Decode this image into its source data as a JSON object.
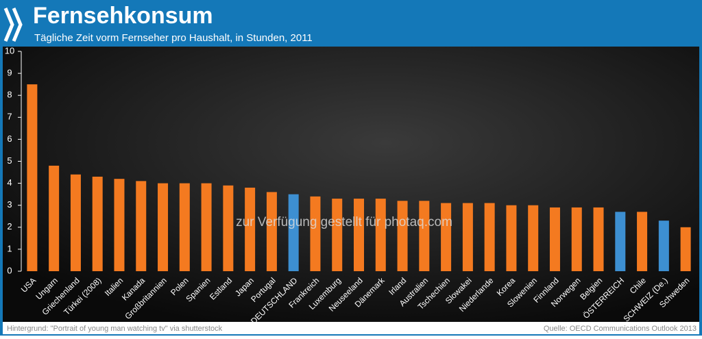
{
  "chart_data": {
    "type": "bar",
    "title": "Fernsehkonsum",
    "subtitle": "Tägliche Zeit vorm Fernseher pro Haushalt, in Stunden, 2011",
    "categories": [
      "USA",
      "Ungarn",
      "Griechenland",
      "Türkei (2008)",
      "Italien",
      "Kanada",
      "Großbritannien",
      "Polen",
      "Spanien",
      "Estland",
      "Japan",
      "Portugal",
      "DEUTSCHLAND",
      "Frankreich",
      "Luxemburg",
      "Neuseeland",
      "Dänemark",
      "Irland",
      "Australien",
      "Tschechien",
      "Slowakei",
      "Niederlande",
      "Korea",
      "Slowenien",
      "Finnland",
      "Norwegen",
      "Belgien",
      "ÖSTERREICH",
      "Chile",
      "SCHWEIZ (De.)",
      "Schweden"
    ],
    "values": [
      8.5,
      4.8,
      4.4,
      4.3,
      4.2,
      4.1,
      4.0,
      4.0,
      4.0,
      3.9,
      3.8,
      3.6,
      3.5,
      3.4,
      3.3,
      3.3,
      3.3,
      3.2,
      3.2,
      3.1,
      3.1,
      3.1,
      3.0,
      3.0,
      2.9,
      2.9,
      2.9,
      2.7,
      2.7,
      2.3,
      2.0
    ],
    "colors": [
      "#f47a20",
      "#f47a20",
      "#f47a20",
      "#f47a20",
      "#f47a20",
      "#f47a20",
      "#f47a20",
      "#f47a20",
      "#f47a20",
      "#f47a20",
      "#f47a20",
      "#f47a20",
      "#3d8fd1",
      "#f47a20",
      "#f47a20",
      "#f47a20",
      "#f47a20",
      "#f47a20",
      "#f47a20",
      "#f47a20",
      "#f47a20",
      "#f47a20",
      "#f47a20",
      "#f47a20",
      "#f47a20",
      "#f47a20",
      "#f47a20",
      "#3d8fd1",
      "#f47a20",
      "#3d8fd1",
      "#f47a20"
    ],
    "ylim": [
      0,
      10
    ],
    "yticks": [
      0,
      1,
      2,
      3,
      4,
      5,
      6,
      7,
      8,
      9,
      10
    ],
    "watermark": "zur Verfügung gestellt für photaq.com",
    "footnote": "Hintergrund: \"Portrait of young man watching tv\" via shutterstock",
    "source": "Quelle: OECD Communications Outlook 2013"
  }
}
